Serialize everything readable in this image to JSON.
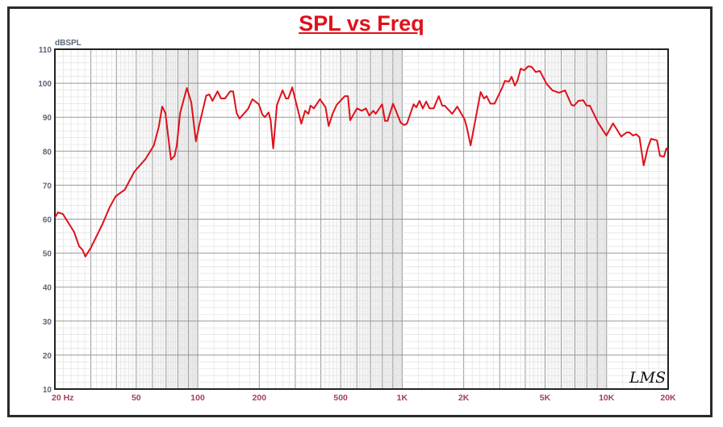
{
  "chart_data": {
    "type": "line",
    "title": "SPL vs Freq",
    "ylabel": "dBSPL",
    "xlabel": "Hz",
    "xscale": "log",
    "xlim": [
      20,
      20000
    ],
    "ylim": [
      10,
      110
    ],
    "yticks": [
      10,
      20,
      30,
      40,
      50,
      60,
      70,
      80,
      90,
      100,
      110
    ],
    "xticks": [
      {
        "v": 20,
        "label": "20  Hz"
      },
      {
        "v": 50,
        "label": "50"
      },
      {
        "v": 100,
        "label": "100"
      },
      {
        "v": 200,
        "label": "200"
      },
      {
        "v": 500,
        "label": "500"
      },
      {
        "v": 1000,
        "label": "1K"
      },
      {
        "v": 2000,
        "label": "2K"
      },
      {
        "v": 5000,
        "label": "5K"
      },
      {
        "v": 10000,
        "label": "10K"
      },
      {
        "v": 20000,
        "label": "20K"
      }
    ],
    "grid": true,
    "series": [
      {
        "name": "SPL",
        "color": "#e0101a",
        "points": [
          [
            20,
            60.4
          ],
          [
            20.7,
            62
          ],
          [
            21.9,
            61.5
          ],
          [
            23.4,
            58.7
          ],
          [
            24.8,
            56.3
          ],
          [
            26.3,
            52
          ],
          [
            27.3,
            51
          ],
          [
            28.2,
            49
          ],
          [
            30,
            51.6
          ],
          [
            34.3,
            58.7
          ],
          [
            37,
            63.4
          ],
          [
            39.6,
            66.7
          ],
          [
            44,
            68.7
          ],
          [
            49,
            74
          ],
          [
            55.5,
            77.7
          ],
          [
            61,
            81.7
          ],
          [
            64.5,
            87.2
          ],
          [
            67,
            93.1
          ],
          [
            69.5,
            91.2
          ],
          [
            74,
            77.5
          ],
          [
            77,
            78.6
          ],
          [
            79,
            81.7
          ],
          [
            82,
            91.2
          ],
          [
            88.5,
            98.6
          ],
          [
            93,
            94.3
          ],
          [
            98,
            82.9
          ],
          [
            102,
            88.1
          ],
          [
            110,
            96.4
          ],
          [
            114,
            96.7
          ],
          [
            118,
            94.8
          ],
          [
            125,
            97.6
          ],
          [
            130,
            95.5
          ],
          [
            136,
            95.5
          ],
          [
            144,
            97.6
          ],
          [
            149,
            97.6
          ],
          [
            155,
            91.2
          ],
          [
            160,
            89.6
          ],
          [
            176,
            92.4
          ],
          [
            185,
            95.3
          ],
          [
            199,
            93.8
          ],
          [
            207,
            90.8
          ],
          [
            213,
            90
          ],
          [
            222,
            91.4
          ],
          [
            227,
            89.3
          ],
          [
            234,
            80.8
          ],
          [
            244,
            93.6
          ],
          [
            260,
            97.9
          ],
          [
            270,
            95.5
          ],
          [
            277,
            95.5
          ],
          [
            290,
            98.8
          ],
          [
            321,
            88.1
          ],
          [
            335,
            91.9
          ],
          [
            348,
            91
          ],
          [
            356,
            93.4
          ],
          [
            370,
            92.6
          ],
          [
            396,
            95.3
          ],
          [
            422,
            92.9
          ],
          [
            437,
            87.4
          ],
          [
            458,
            91.2
          ],
          [
            478,
            93.6
          ],
          [
            524,
            96.2
          ],
          [
            543,
            96.2
          ],
          [
            557,
            89.1
          ],
          [
            601,
            92.6
          ],
          [
            635,
            91.9
          ],
          [
            665,
            92.6
          ],
          [
            690,
            90.5
          ],
          [
            723,
            91.9
          ],
          [
            742,
            91
          ],
          [
            798,
            93.8
          ],
          [
            824,
            88.9
          ],
          [
            848,
            88.9
          ],
          [
            902,
            94
          ],
          [
            983,
            88.4
          ],
          [
            1024,
            87.7
          ],
          [
            1055,
            88.1
          ],
          [
            1138,
            93.8
          ],
          [
            1172,
            92.9
          ],
          [
            1216,
            94.8
          ],
          [
            1262,
            92.6
          ],
          [
            1311,
            94.6
          ],
          [
            1361,
            92.6
          ],
          [
            1426,
            92.6
          ],
          [
            1511,
            96.2
          ],
          [
            1569,
            93.4
          ],
          [
            1614,
            93.4
          ],
          [
            1756,
            91
          ],
          [
            1860,
            93.1
          ],
          [
            2022,
            89.3
          ],
          [
            2081,
            86.5
          ],
          [
            2162,
            81.7
          ],
          [
            2246,
            87
          ],
          [
            2420,
            97.4
          ],
          [
            2513,
            95.5
          ],
          [
            2590,
            96.2
          ],
          [
            2700,
            94
          ],
          [
            2830,
            94
          ],
          [
            3080,
            98.6
          ],
          [
            3180,
            100.7
          ],
          [
            3330,
            100.5
          ],
          [
            3430,
            101.9
          ],
          [
            3560,
            99.3
          ],
          [
            3660,
            100.7
          ],
          [
            3800,
            104.3
          ],
          [
            3950,
            103.8
          ],
          [
            4140,
            105
          ],
          [
            4300,
            104.8
          ],
          [
            4500,
            103.3
          ],
          [
            4720,
            103.6
          ],
          [
            5090,
            99.8
          ],
          [
            5430,
            97.9
          ],
          [
            5850,
            97.2
          ],
          [
            6260,
            97.9
          ],
          [
            6740,
            93.6
          ],
          [
            6940,
            93.4
          ],
          [
            7270,
            94.8
          ],
          [
            7690,
            95
          ],
          [
            7980,
            93.4
          ],
          [
            8280,
            93.4
          ],
          [
            9090,
            88.4
          ],
          [
            9980,
            84.6
          ],
          [
            10750,
            88.2
          ],
          [
            11800,
            84.3
          ],
          [
            12500,
            85.5
          ],
          [
            12950,
            85.5
          ],
          [
            13440,
            84.6
          ],
          [
            13950,
            85
          ],
          [
            14480,
            84.1
          ],
          [
            15180,
            75.8
          ],
          [
            15900,
            81
          ],
          [
            16500,
            83.6
          ],
          [
            17620,
            83.2
          ],
          [
            18270,
            78.6
          ],
          [
            19090,
            78.4
          ],
          [
            19600,
            80.8
          ],
          [
            20000,
            80.2
          ]
        ]
      }
    ],
    "annotation": "LMS"
  }
}
